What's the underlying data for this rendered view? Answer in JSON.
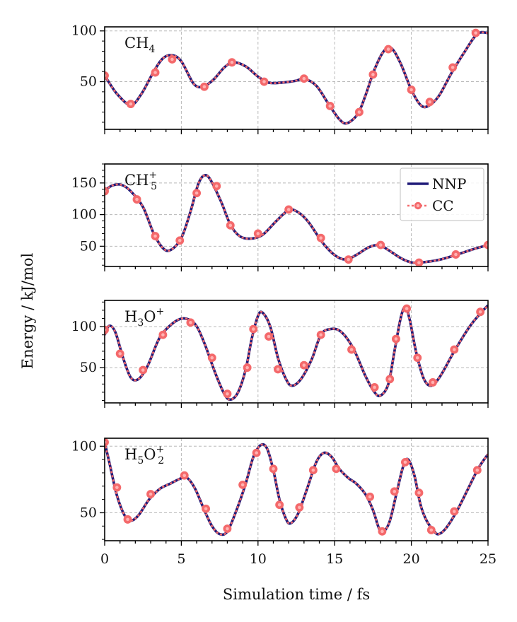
{
  "chart_data": [
    {
      "type": "line",
      "panel_label": {
        "base": "CH",
        "sub": "4",
        "sup": ""
      },
      "ylim": [
        3,
        104
      ],
      "yticks": [
        50,
        100
      ],
      "grid": true,
      "series": [
        {
          "name": "NNP",
          "color": "#1f1a78",
          "style": "solid"
        },
        {
          "name": "CC",
          "color": "#f4696b",
          "style": "dotted-circles"
        }
      ],
      "curve": [
        [
          0,
          56
        ],
        [
          0.8,
          38
        ],
        [
          1.7,
          27
        ],
        [
          2.4,
          38
        ],
        [
          3.2,
          60
        ],
        [
          3.8,
          73
        ],
        [
          4.4,
          76
        ],
        [
          5.0,
          70
        ],
        [
          5.8,
          48
        ],
        [
          6.4,
          45
        ],
        [
          7.1,
          52
        ],
        [
          7.8,
          64
        ],
        [
          8.4,
          69
        ],
        [
          9.2,
          65
        ],
        [
          10.0,
          55
        ],
        [
          10.7,
          49
        ],
        [
          11.5,
          49
        ],
        [
          12.5,
          51
        ],
        [
          13.0,
          53
        ],
        [
          13.8,
          46
        ],
        [
          14.6,
          28
        ],
        [
          15.3,
          13
        ],
        [
          15.8,
          9
        ],
        [
          16.5,
          18
        ],
        [
          17.0,
          36
        ],
        [
          17.6,
          62
        ],
        [
          18.2,
          80
        ],
        [
          18.7,
          83
        ],
        [
          19.3,
          68
        ],
        [
          20.0,
          42
        ],
        [
          20.6,
          27
        ],
        [
          21.1,
          26
        ],
        [
          21.8,
          36
        ],
        [
          22.6,
          58
        ],
        [
          23.5,
          80
        ],
        [
          24.3,
          97
        ],
        [
          25,
          98
        ]
      ],
      "cc_points": [
        [
          0,
          56
        ],
        [
          1.7,
          28
        ],
        [
          3.3,
          59
        ],
        [
          4.4,
          72
        ],
        [
          6.5,
          45
        ],
        [
          8.3,
          69
        ],
        [
          10.4,
          50
        ],
        [
          13.0,
          53
        ],
        [
          14.7,
          26
        ],
        [
          16.6,
          20
        ],
        [
          17.5,
          57
        ],
        [
          18.5,
          82
        ],
        [
          20.0,
          42
        ],
        [
          21.2,
          30
        ],
        [
          22.7,
          64
        ],
        [
          24.2,
          98
        ]
      ]
    },
    {
      "type": "line",
      "panel_label": {
        "base": "CH",
        "sub": "5",
        "sup": "+"
      },
      "ylim": [
        18,
        180
      ],
      "yticks": [
        50,
        100,
        150
      ],
      "grid": true,
      "legend": {
        "position": "top-right",
        "entries": [
          "NNP",
          "CC"
        ]
      },
      "series": [
        {
          "name": "NNP",
          "color": "#1f1a78",
          "style": "solid"
        },
        {
          "name": "CC",
          "color": "#f4696b",
          "style": "dotted-circles"
        }
      ],
      "curve": [
        [
          0,
          138
        ],
        [
          0.5,
          146
        ],
        [
          1.1,
          147
        ],
        [
          1.7,
          137
        ],
        [
          2.5,
          112
        ],
        [
          3.2,
          70
        ],
        [
          3.8,
          47
        ],
        [
          4.3,
          44
        ],
        [
          5.0,
          63
        ],
        [
          5.6,
          105
        ],
        [
          6.1,
          148
        ],
        [
          6.5,
          162
        ],
        [
          6.9,
          155
        ],
        [
          7.6,
          120
        ],
        [
          8.2,
          84
        ],
        [
          8.8,
          66
        ],
        [
          9.5,
          62
        ],
        [
          10.3,
          68
        ],
        [
          11.2,
          90
        ],
        [
          12.0,
          107
        ],
        [
          12.6,
          104
        ],
        [
          13.3,
          88
        ],
        [
          14.2,
          56
        ],
        [
          15.0,
          36
        ],
        [
          15.7,
          29
        ],
        [
          16.4,
          36
        ],
        [
          17.2,
          48
        ],
        [
          17.9,
          52
        ],
        [
          18.5,
          44
        ],
        [
          19.4,
          30
        ],
        [
          20.1,
          24
        ],
        [
          20.9,
          25
        ],
        [
          21.9,
          29
        ],
        [
          23.0,
          37
        ],
        [
          24.0,
          45
        ],
        [
          25,
          52
        ]
      ],
      "cc_points": [
        [
          0,
          137
        ],
        [
          2.1,
          124
        ],
        [
          3.3,
          66
        ],
        [
          4.9,
          59
        ],
        [
          6.0,
          134
        ],
        [
          7.3,
          145
        ],
        [
          8.2,
          83
        ],
        [
          10.0,
          70
        ],
        [
          12.0,
          108
        ],
        [
          14.1,
          63
        ],
        [
          15.9,
          29
        ],
        [
          18.0,
          52
        ],
        [
          20.5,
          24
        ],
        [
          22.9,
          37
        ],
        [
          25,
          52
        ]
      ]
    },
    {
      "type": "line",
      "panel_label": {
        "base": "H",
        "sub": "3",
        "mid": "O",
        "sup": "+"
      },
      "ylim": [
        7,
        132
      ],
      "yticks": [
        50,
        100
      ],
      "grid": true,
      "series": [
        {
          "name": "NNP",
          "color": "#1f1a78",
          "style": "solid"
        },
        {
          "name": "CC",
          "color": "#f4696b",
          "style": "dotted-circles"
        }
      ],
      "curve": [
        [
          0,
          90
        ],
        [
          0.3,
          101
        ],
        [
          0.7,
          93
        ],
        [
          1.2,
          62
        ],
        [
          1.7,
          38
        ],
        [
          2.2,
          36
        ],
        [
          2.8,
          52
        ],
        [
          3.6,
          87
        ],
        [
          4.5,
          105
        ],
        [
          5.2,
          110
        ],
        [
          5.9,
          103
        ],
        [
          6.5,
          80
        ],
        [
          7.2,
          44
        ],
        [
          7.8,
          18
        ],
        [
          8.2,
          11
        ],
        [
          8.7,
          20
        ],
        [
          9.2,
          48
        ],
        [
          9.6,
          86
        ],
        [
          10.0,
          113
        ],
        [
          10.3,
          117
        ],
        [
          10.8,
          100
        ],
        [
          11.3,
          62
        ],
        [
          11.8,
          37
        ],
        [
          12.2,
          28
        ],
        [
          12.8,
          36
        ],
        [
          13.5,
          60
        ],
        [
          14.1,
          90
        ],
        [
          14.7,
          97
        ],
        [
          15.4,
          94
        ],
        [
          16.2,
          74
        ],
        [
          17.0,
          40
        ],
        [
          17.6,
          20
        ],
        [
          18.0,
          16
        ],
        [
          18.5,
          30
        ],
        [
          18.9,
          70
        ],
        [
          19.3,
          110
        ],
        [
          19.6,
          124
        ],
        [
          19.9,
          108
        ],
        [
          20.3,
          70
        ],
        [
          20.8,
          37
        ],
        [
          21.3,
          28
        ],
        [
          21.9,
          40
        ],
        [
          22.8,
          70
        ],
        [
          23.8,
          100
        ],
        [
          24.5,
          116
        ],
        [
          25,
          126
        ]
      ],
      "cc_points": [
        [
          0,
          96
        ],
        [
          1.0,
          67
        ],
        [
          2.5,
          47
        ],
        [
          3.8,
          90
        ],
        [
          5.6,
          105
        ],
        [
          7.0,
          62
        ],
        [
          8.0,
          18
        ],
        [
          9.3,
          50
        ],
        [
          9.7,
          97
        ],
        [
          10.7,
          88
        ],
        [
          11.3,
          48
        ],
        [
          13.0,
          53
        ],
        [
          14.1,
          90
        ],
        [
          16.1,
          72
        ],
        [
          17.6,
          26
        ],
        [
          18.6,
          36
        ],
        [
          19.0,
          85
        ],
        [
          19.7,
          122
        ],
        [
          20.4,
          62
        ],
        [
          21.4,
          32
        ],
        [
          22.8,
          72
        ],
        [
          24.5,
          118
        ]
      ]
    },
    {
      "type": "line",
      "panel_label": {
        "base": "H",
        "sub": "5",
        "mid": "O",
        "sub2": "2",
        "sup": "+"
      },
      "ylim": [
        29,
        106
      ],
      "yticks": [
        50,
        100
      ],
      "grid": true,
      "xlim": [
        0,
        25
      ],
      "xticks": [
        0,
        5,
        10,
        15,
        20,
        25
      ],
      "xlabel": "Simulation time / fs",
      "series": [
        {
          "name": "NNP",
          "color": "#1f1a78",
          "style": "solid"
        },
        {
          "name": "CC",
          "color": "#f4696b",
          "style": "dotted-circles"
        }
      ],
      "curve": [
        [
          0,
          103
        ],
        [
          0.3,
          88
        ],
        [
          0.8,
          63
        ],
        [
          1.3,
          48
        ],
        [
          1.7,
          44
        ],
        [
          2.2,
          48
        ],
        [
          2.9,
          60
        ],
        [
          3.6,
          68
        ],
        [
          4.3,
          72
        ],
        [
          5.0,
          76
        ],
        [
          5.4,
          76
        ],
        [
          5.9,
          68
        ],
        [
          6.5,
          52
        ],
        [
          7.0,
          40
        ],
        [
          7.5,
          34
        ],
        [
          8.0,
          36
        ],
        [
          8.6,
          52
        ],
        [
          9.2,
          72
        ],
        [
          9.7,
          92
        ],
        [
          10.2,
          101
        ],
        [
          10.6,
          98
        ],
        [
          11.0,
          82
        ],
        [
          11.4,
          60
        ],
        [
          11.8,
          46
        ],
        [
          12.1,
          42
        ],
        [
          12.6,
          49
        ],
        [
          13.2,
          68
        ],
        [
          13.8,
          88
        ],
        [
          14.3,
          95
        ],
        [
          14.8,
          92
        ],
        [
          15.3,
          83
        ],
        [
          15.9,
          76
        ],
        [
          16.4,
          72
        ],
        [
          17.0,
          64
        ],
        [
          17.5,
          52
        ],
        [
          17.9,
          38
        ],
        [
          18.2,
          36
        ],
        [
          18.6,
          44
        ],
        [
          19.1,
          68
        ],
        [
          19.5,
          86
        ],
        [
          19.8,
          90
        ],
        [
          20.2,
          78
        ],
        [
          20.6,
          56
        ],
        [
          21.0,
          44
        ],
        [
          21.5,
          36
        ],
        [
          21.8,
          34
        ],
        [
          22.3,
          39
        ],
        [
          23.0,
          52
        ],
        [
          23.7,
          68
        ],
        [
          24.4,
          84
        ],
        [
          25,
          94
        ]
      ],
      "cc_points": [
        [
          0,
          103
        ],
        [
          0.8,
          69
        ],
        [
          1.5,
          45
        ],
        [
          3.0,
          64
        ],
        [
          5.2,
          78
        ],
        [
          6.6,
          53
        ],
        [
          8.0,
          38
        ],
        [
          9.0,
          71
        ],
        [
          9.9,
          95
        ],
        [
          11.0,
          83
        ],
        [
          11.4,
          56
        ],
        [
          12.7,
          54
        ],
        [
          13.6,
          82
        ],
        [
          15.1,
          83
        ],
        [
          17.3,
          62
        ],
        [
          18.1,
          36
        ],
        [
          18.9,
          66
        ],
        [
          19.6,
          88
        ],
        [
          20.5,
          65
        ],
        [
          21.3,
          37
        ],
        [
          22.8,
          51
        ],
        [
          24.3,
          82
        ]
      ]
    }
  ],
  "ylabel": "Energy / kJ/mol",
  "legend_labels": {
    "nnp": "NNP",
    "cc": "CC"
  }
}
